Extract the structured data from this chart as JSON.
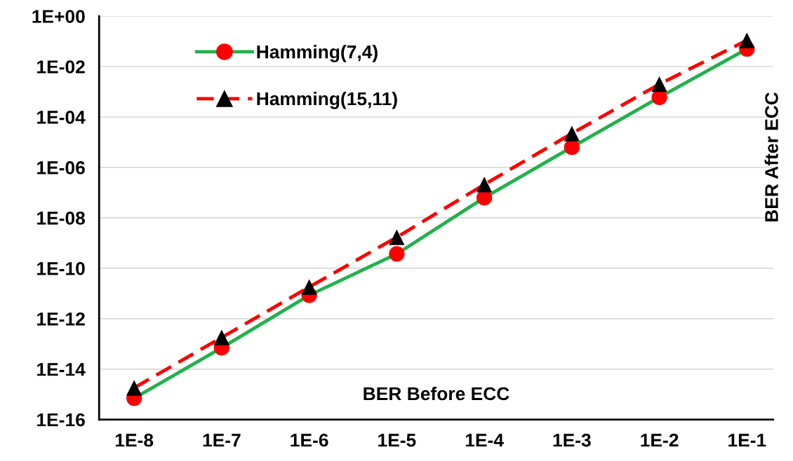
{
  "chart_data": {
    "type": "line",
    "xlabel": "BER Before ECC",
    "ylabel": "BER After ECC",
    "categories": [
      "1E-8",
      "1E-7",
      "1E-6",
      "1E-5",
      "1E-4",
      "1E-3",
      "1E-2",
      "1E-1"
    ],
    "series": [
      {
        "name": "Hamming(7,4)",
        "color": "#22b14c",
        "colors": [
          "#ff0000",
          "#ff0000",
          "#ff0000",
          "#ff0000",
          "#ff0000",
          "#ff0000",
          "#ff0000",
          "#ff0000"
        ],
        "marker": "circle",
        "line_style": "solid",
        "values": [
          7e-16,
          7e-14,
          8.5e-12,
          3.7e-10,
          6.3e-08,
          6.3e-06,
          0.0006,
          0.05
        ]
      },
      {
        "name": "Hamming(15,11)",
        "color": "#ff0000",
        "colors": [
          "#000000",
          "#000000",
          "#000000",
          "#000000",
          "#000000",
          "#000000",
          "#000000",
          "#000000"
        ],
        "marker": "triangle",
        "line_style": "dashed",
        "values": [
          1.8e-15,
          1.8e-13,
          1.8e-11,
          1.7e-09,
          2.1e-07,
          2.2e-05,
          0.002,
          0.11
        ]
      }
    ],
    "log": "y",
    "ylim": [
      1e-16,
      1
    ],
    "yticks": [
      {
        "value": 1e-16,
        "label": "1E-16"
      },
      {
        "value": 1e-14,
        "label": "1E-14"
      },
      {
        "value": 1e-12,
        "label": "1E-12"
      },
      {
        "value": 1e-10,
        "label": "1E-10"
      },
      {
        "value": 1e-08,
        "label": "1E-08"
      },
      {
        "value": 1e-06,
        "label": "1E-06"
      },
      {
        "value": 0.0001,
        "label": "1E-04"
      },
      {
        "value": 0.01,
        "label": "1E-02"
      },
      {
        "value": 1,
        "label": "1E+00"
      }
    ],
    "grid": "y",
    "legend": "top left"
  }
}
